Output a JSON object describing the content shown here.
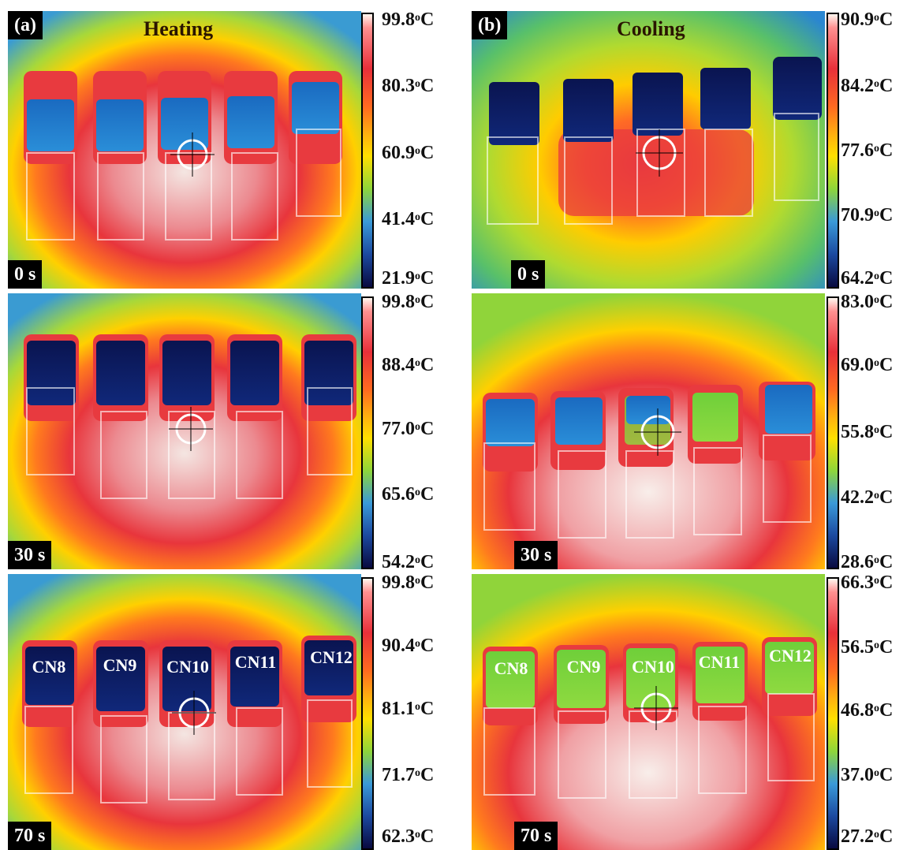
{
  "panels": {
    "a": {
      "letter": "(a)",
      "title": "Heating",
      "title_color": "#2a1500"
    },
    "b": {
      "letter": "(b)",
      "title": "Cooling",
      "title_color": "#2a1500"
    }
  },
  "frames": {
    "heat_0": {
      "time": "0 s",
      "scale": [
        "99.8",
        "80.3",
        "60.9",
        "41.4",
        "21.9"
      ]
    },
    "heat_30": {
      "time": "30 s",
      "scale": [
        "99.8",
        "88.4",
        "77.0",
        "65.6",
        "54.2"
      ]
    },
    "heat_70": {
      "time": "70 s",
      "scale": [
        "99.8",
        "90.4",
        "81.1",
        "71.7",
        "62.3"
      ]
    },
    "cool_0": {
      "time": "0 s",
      "scale": [
        "90.9",
        "84.2",
        "77.6",
        "70.9",
        "64.2"
      ]
    },
    "cool_30": {
      "time": "30 s",
      "scale": [
        "83.0",
        "69.0",
        "55.8",
        "42.2",
        "28.6"
      ]
    },
    "cool_70": {
      "time": "70 s",
      "scale": [
        "66.3",
        "56.5",
        "46.8",
        "37.0",
        "27.2"
      ]
    }
  },
  "units": {
    "deg": "o",
    "c": "C"
  },
  "channels": [
    "CN8",
    "CN9",
    "CN10",
    "CN11",
    "CN12"
  ],
  "colors": {
    "hot": "#e8303a",
    "white_hot": "#f6ece8",
    "cold": "#0a1a5a",
    "warm_yellow": "#ffd400",
    "green": "#7fd03a",
    "blue": "#2a86d0"
  }
}
